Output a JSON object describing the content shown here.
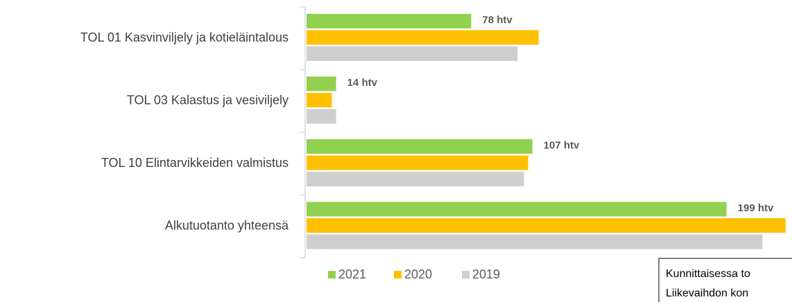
{
  "chart_data": {
    "type": "bar",
    "orientation": "horizontal",
    "categories": [
      "TOL 01 Kasvinviljely ja kotieläintalous",
      "TOL 03 Kalastus ja vesiviljely",
      "TOL 10 Elintarvikkeiden valmistus",
      "Alkutuotanto yhteensä"
    ],
    "series": [
      {
        "name": "2021",
        "color": "#92d050",
        "values": [
          78,
          14,
          107,
          199
        ],
        "value_labels": [
          "78 htv",
          "14 htv",
          "107 htv",
          "199 htv"
        ]
      },
      {
        "name": "2020",
        "color": "#ffc000",
        "values": [
          110,
          12,
          105,
          227
        ]
      },
      {
        "name": "2019",
        "color": "#d0cece",
        "values": [
          100,
          14,
          103,
          216
        ]
      }
    ],
    "xlim": [
      0,
      230
    ],
    "annotations": [
      "Kunnittaisessa to",
      "Liikevaihdon kon"
    ]
  }
}
